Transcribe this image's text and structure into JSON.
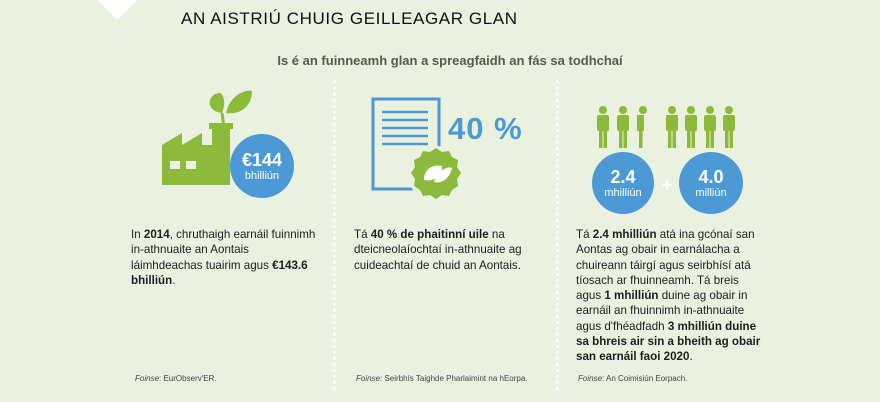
{
  "header": {
    "title": "AN AISTRIÚ CHUIG GEILLEAGAR GLAN",
    "subtitle": "Is é an fuinneamh glan a spreagfaidh an fás sa todhchaí"
  },
  "colors": {
    "green": "#8cbb3b",
    "blue": "#4b9ad6",
    "background": "#eaf1de"
  },
  "col1": {
    "icon": "factory-sprout-icon",
    "badge_value": "€144",
    "badge_unit": "bhilliún",
    "text": {
      "p1": "In ",
      "b1": "2014",
      "p2": ", chruthaigh earnáil fuinnimh in-athnuaite an Aontais láimhdeachas tuairim agus ",
      "b2": "€143.6 bhilliún",
      "p3": "."
    },
    "source_label": "Foinse",
    "source": ": EurObserv'ER."
  },
  "col2": {
    "icon": "document-leaf-seal-icon",
    "percent": "40 %",
    "text": {
      "p1": "Tá ",
      "b1": "40 % de phaitinní uile",
      "p2": " na dteicneolaíochtaí in-athnuaite ag cuideachtaí de chuid an Aontais."
    },
    "source_label": "Foinse",
    "source": ": Seirbhís Taighde Pharlaimint na hEorpa."
  },
  "col3": {
    "icon": "people-group-icon",
    "badge1_value": "2.4",
    "badge1_unit": "mhilliún",
    "plus": "+",
    "badge2_value": "4.0",
    "badge2_unit": "milliún",
    "text": {
      "p1": "Tá ",
      "b1": "2.4 mhilliún",
      "p2": " atá ina gcónaí san Aontas ag obair in earnálacha a chuireann táirgí agus seirbhísí atá tíosach ar fhuinneamh. Tá breis agus ",
      "b2": "1 mhilliún",
      "p3": " duine ag obair in earnáil an fhuinnimh in-athnuaite agus d'fhéadfadh ",
      "b3": "3 mhilliún duine sa bhreis air sin a bheith ag obair san earnáil faoi 2020",
      "p4": "."
    },
    "source_label": "Foinse",
    "source": ": An Coimisiún Eorpach."
  }
}
